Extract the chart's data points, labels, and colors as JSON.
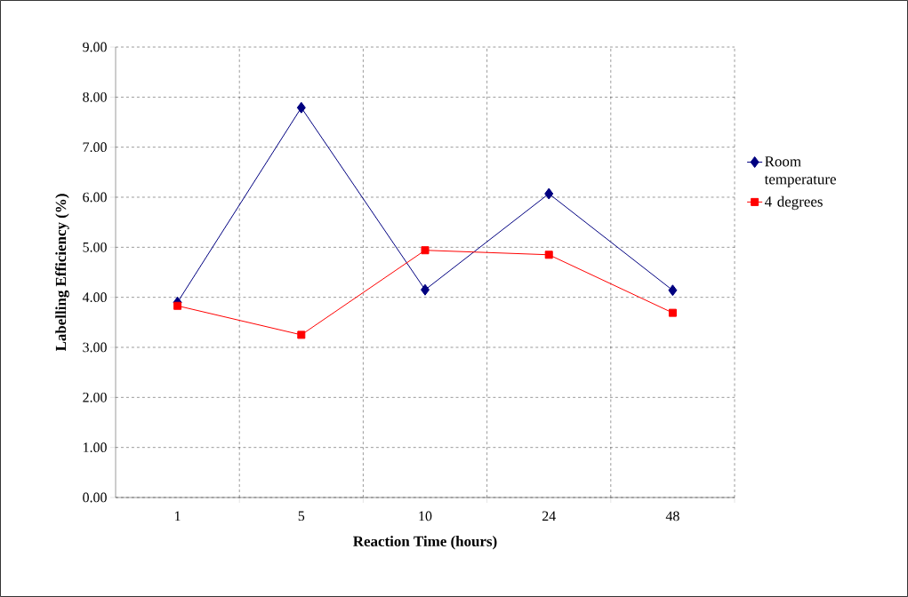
{
  "chart_data": {
    "type": "line",
    "xlabel": "Reaction Time (hours)",
    "ylabel": "Labelling Efficiency (%)",
    "categories": [
      "1",
      "5",
      "10",
      "24",
      "48"
    ],
    "series": [
      {
        "name": "Room temperature",
        "color": "#000080",
        "marker": "diamond",
        "values": [
          3.9,
          7.79,
          4.15,
          6.07,
          4.14
        ]
      },
      {
        "name": "4 degrees",
        "color": "#ff0000",
        "marker": "square",
        "values": [
          3.83,
          3.25,
          4.94,
          4.85,
          3.69
        ]
      }
    ],
    "ylim": [
      0,
      9
    ],
    "yticks": [
      {
        "value": 0,
        "label": "0.00"
      },
      {
        "value": 1,
        "label": "1.00"
      },
      {
        "value": 2,
        "label": "2.00"
      },
      {
        "value": 3,
        "label": "3.00"
      },
      {
        "value": 4,
        "label": "4.00"
      },
      {
        "value": 5,
        "label": "5.00"
      },
      {
        "value": 6,
        "label": "6.00"
      },
      {
        "value": 7,
        "label": "7.00"
      },
      {
        "value": 8,
        "label": "8.00"
      },
      {
        "value": 9,
        "label": "9.00"
      }
    ],
    "grid": true,
    "legend": "right",
    "line_style": "solid"
  }
}
